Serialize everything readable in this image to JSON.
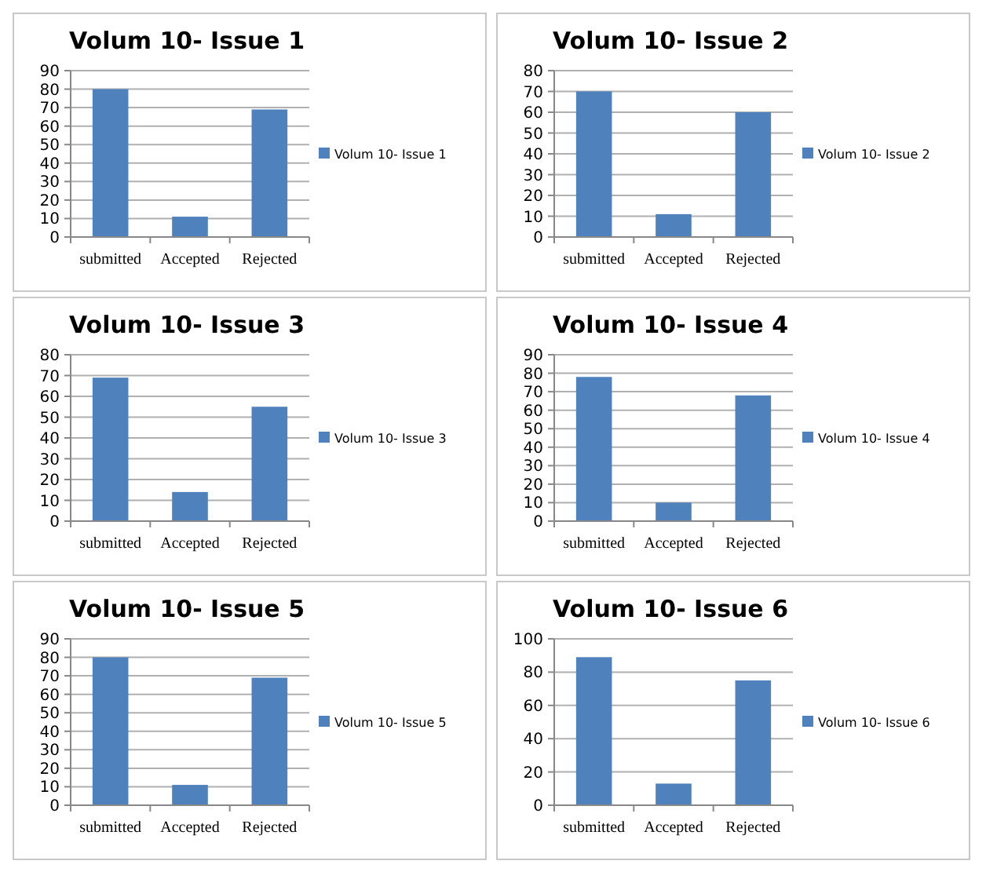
{
  "chart_data": [
    {
      "type": "bar",
      "title": "Volum 10- Issue 1",
      "categories": [
        "submitted",
        "Accepted",
        "Rejected"
      ],
      "series": [
        {
          "name": "Volum 10- Issue 1",
          "color": "#4f81bd",
          "values": [
            80,
            11,
            69
          ]
        }
      ],
      "ylim": [
        0,
        90
      ],
      "yticks": [
        0,
        10,
        20,
        30,
        40,
        50,
        60,
        70,
        80,
        90
      ],
      "grid": "y",
      "legend": "right"
    },
    {
      "type": "bar",
      "title": "Volum 10- Issue 2",
      "categories": [
        "submitted",
        "Accepted",
        "Rejected"
      ],
      "series": [
        {
          "name": "Volum 10- Issue 2",
          "color": "#4f81bd",
          "values": [
            70,
            11,
            60
          ]
        }
      ],
      "ylim": [
        0,
        80
      ],
      "yticks": [
        0,
        10,
        20,
        30,
        40,
        50,
        60,
        70,
        80
      ],
      "grid": "y",
      "legend": "right"
    },
    {
      "type": "bar",
      "title": "Volum 10- Issue 3",
      "categories": [
        "submitted",
        "Accepted",
        "Rejected"
      ],
      "series": [
        {
          "name": "Volum 10- Issue 3",
          "color": "#4f81bd",
          "values": [
            69,
            14,
            55
          ]
        }
      ],
      "ylim": [
        0,
        80
      ],
      "yticks": [
        0,
        10,
        20,
        30,
        40,
        50,
        60,
        70,
        80
      ],
      "grid": "y",
      "legend": "right"
    },
    {
      "type": "bar",
      "title": "Volum 10- Issue 4",
      "categories": [
        "submitted",
        "Accepted",
        "Rejected"
      ],
      "series": [
        {
          "name": "Volum 10- Issue 4",
          "color": "#4f81bd",
          "values": [
            78,
            10,
            68
          ]
        }
      ],
      "ylim": [
        0,
        90
      ],
      "yticks": [
        0,
        10,
        20,
        30,
        40,
        50,
        60,
        70,
        80,
        90
      ],
      "grid": "y",
      "legend": "right"
    },
    {
      "type": "bar",
      "title": "Volum 10- Issue 5",
      "categories": [
        "submitted",
        "Accepted",
        "Rejected"
      ],
      "series": [
        {
          "name": "Volum 10- Issue 5",
          "color": "#4f81bd",
          "values": [
            80,
            11,
            69
          ]
        }
      ],
      "ylim": [
        0,
        90
      ],
      "yticks": [
        0,
        10,
        20,
        30,
        40,
        50,
        60,
        70,
        80,
        90
      ],
      "grid": "y",
      "legend": "right"
    },
    {
      "type": "bar",
      "title": "Volum 10- Issue 6",
      "categories": [
        "submitted",
        "Accepted",
        "Rejected"
      ],
      "series": [
        {
          "name": "Volum 10- Issue 6",
          "color": "#4f81bd",
          "values": [
            89,
            13,
            75
          ]
        }
      ],
      "ylim": [
        0,
        100
      ],
      "yticks": [
        0,
        20,
        40,
        60,
        80,
        100
      ],
      "grid": "y",
      "legend": "right"
    }
  ]
}
